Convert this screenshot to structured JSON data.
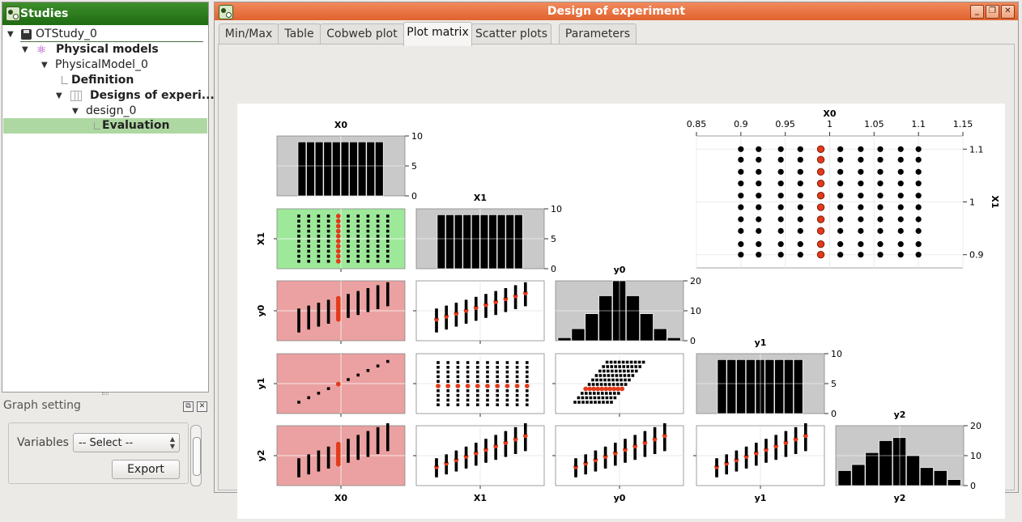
{
  "studies_panel": {
    "title": "Studies",
    "tree": [
      {
        "label": "OTStudy_0",
        "icon": "disk-icon",
        "bold": false
      },
      {
        "label": "Physical models",
        "icon": "atom-icon",
        "bold": true
      },
      {
        "label": "PhysicalModel_0",
        "icon": "",
        "bold": false
      },
      {
        "label": "Definition",
        "icon": "",
        "bold": true
      },
      {
        "label": "Designs of experi...",
        "icon": "table-icon",
        "bold": true
      },
      {
        "label": "design_0",
        "icon": "",
        "bold": false
      },
      {
        "label": "Evaluation",
        "icon": "",
        "bold": true,
        "selected": true
      }
    ]
  },
  "graph_setting": {
    "title": "Graph setting",
    "variables_label": "Variables",
    "select_value": "-- Select --",
    "export_label": "Export"
  },
  "main_window": {
    "title": "Design of experiment",
    "tabs": [
      "Min/Max",
      "Table",
      "Cobweb plot",
      "Plot matrix",
      "Scatter plots",
      "Parameters"
    ],
    "active_tab": "Plot matrix"
  },
  "colors": {
    "selected_point": "#e23a1a",
    "highlight_green": "#9ee89a",
    "highlight_red": "#eba1a1",
    "hist_bg": "#c9c9c9",
    "studies_title_bar": "#2e7d1e",
    "main_title_bar": "#e8703e"
  },
  "chart_data": {
    "type": "scatter",
    "title": "",
    "variables": [
      "X0",
      "X1",
      "y0",
      "y1",
      "y2"
    ],
    "diagonal_histograms": {
      "X0": {
        "yticks": [
          "0",
          "5",
          "10"
        ],
        "counts": [
          9,
          9,
          9,
          9,
          9,
          9,
          9,
          9,
          9,
          9
        ]
      },
      "X1": {
        "yticks": [
          "0",
          "5",
          "10"
        ],
        "counts": [
          9,
          9,
          9,
          9,
          9,
          9,
          9,
          9,
          9,
          9
        ]
      },
      "y0": {
        "yticks": [
          "0",
          "10",
          "20"
        ],
        "counts": [
          1,
          4,
          9,
          15,
          20,
          15,
          9,
          4,
          1
        ]
      },
      "y1": {
        "yticks": [
          "0",
          "5",
          "10"
        ],
        "counts": [
          9,
          9,
          9,
          9,
          9,
          9,
          9,
          9,
          9
        ]
      },
      "y2": {
        "yticks": [
          "0",
          "10",
          "20"
        ],
        "counts": [
          5,
          7,
          11,
          15,
          16,
          10,
          6,
          5,
          2
        ]
      }
    },
    "panel_highlights": {
      "X1-X0": "green",
      "y0-X0": "red",
      "y1-X0": "red",
      "y2-X0": "red"
    },
    "selection": {
      "X0": 0.99
    },
    "zoom_plot": {
      "xlabel": "X0",
      "ylabel": "X1",
      "x_ticks": [
        "0.85",
        "0.9",
        "0.95",
        "1",
        "1.05",
        "1.1",
        "1.15"
      ],
      "y_ticks": [
        "0.9",
        "1",
        "1.1"
      ],
      "xlim": [
        0.85,
        1.15
      ],
      "ylim": [
        0.875,
        1.125
      ],
      "x_values": [
        0.9,
        0.92,
        0.945,
        0.967,
        0.99,
        1.012,
        1.035,
        1.057,
        1.08,
        1.1
      ],
      "y_values": [
        0.9,
        0.92,
        0.945,
        0.967,
        0.99,
        1.012,
        1.035,
        1.057,
        1.08,
        1.1
      ]
    }
  }
}
